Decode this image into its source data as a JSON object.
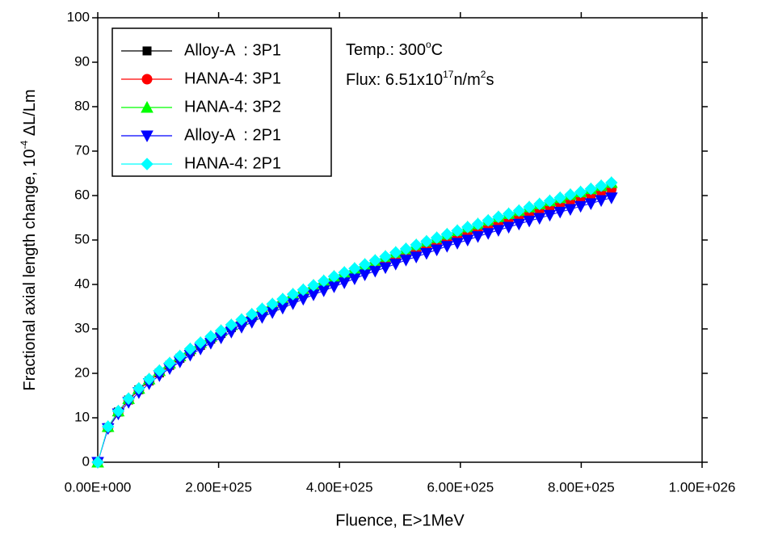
{
  "chart_data": {
    "type": "line",
    "x_label": "Fluence, E>1MeV",
    "y_label": {
      "parts": [
        {
          "text": "Fractional axial length change, 10"
        },
        {
          "text": "-4",
          "sup": true
        },
        {
          "text": " ΔL/Lm"
        }
      ]
    },
    "annotations": [
      {
        "parts": [
          {
            "text": "Temp.: 300"
          },
          {
            "text": "o",
            "sup": true
          },
          {
            "text": "C"
          }
        ]
      },
      {
        "parts": [
          {
            "text": "Flux: 6.51x10"
          },
          {
            "text": "17",
            "sup": true
          },
          {
            "text": "n/m"
          },
          {
            "text": "2",
            "sup": true
          },
          {
            "text": "s"
          }
        ]
      }
    ],
    "xlim": [
      0,
      1e+26
    ],
    "xticks": [
      {
        "value": 0,
        "label": "0.00E+000"
      },
      {
        "value": 2e+25,
        "label": "2.00E+025"
      },
      {
        "value": 4e+25,
        "label": "4.00E+025"
      },
      {
        "value": 6e+25,
        "label": "6.00E+025"
      },
      {
        "value": 8e+25,
        "label": "8.00E+025"
      },
      {
        "value": 1e+26,
        "label": "1.00E+026"
      }
    ],
    "ylim": [
      0,
      100
    ],
    "yticks": [
      0,
      10,
      20,
      30,
      40,
      50,
      60,
      70,
      80,
      90,
      100
    ],
    "legend": "upper left",
    "x": [
      0,
      1.7e+24,
      3.4e+24,
      5.1e+24,
      6.8e+24,
      8.5e+24,
      1.02e+25,
      1.19e+25,
      1.36e+25,
      1.53e+25,
      1.7e+25,
      1.87e+25,
      2.04e+25,
      2.21e+25,
      2.38e+25,
      2.55e+25,
      2.72e+25,
      2.89e+25,
      3.06e+25,
      3.23e+25,
      3.4e+25,
      3.57e+25,
      3.74e+25,
      3.91e+25,
      4.08e+25,
      4.25e+25,
      4.42e+25,
      4.59e+25,
      4.76e+25,
      4.93e+25,
      5.1e+25,
      5.27e+25,
      5.44e+25,
      5.61e+25,
      5.78e+25,
      5.95e+25,
      6.12e+25,
      6.29e+25,
      6.46e+25,
      6.63e+25,
      6.8e+25,
      6.97e+25,
      7.14e+25,
      7.31e+25,
      7.48e+25,
      7.65e+25,
      7.82e+25,
      7.99e+25,
      8.16e+25,
      8.33e+25,
      8.5e+25
    ],
    "series": [
      {
        "name": "Alloy-A  : 3P1",
        "color": "#000000",
        "marker": "square",
        "values": [
          0,
          7.8,
          11.3,
          14.0,
          16.3,
          18.3,
          20.1,
          21.8,
          23.4,
          24.9,
          26.3,
          27.7,
          29.0,
          30.3,
          31.5,
          32.6,
          33.8,
          34.9,
          35.9,
          37.0,
          38.0,
          39.0,
          39.9,
          40.9,
          41.8,
          42.7,
          43.6,
          44.5,
          45.3,
          46.2,
          47.0,
          47.8,
          48.6,
          49.4,
          50.2,
          51.0,
          51.8,
          52.5,
          53.3,
          54.0,
          54.7,
          55.4,
          56.1,
          56.8,
          57.5,
          58.2,
          58.9,
          59.6,
          60.2,
          60.9,
          61.5
        ]
      },
      {
        "name": "HANA-4: 3P1",
        "color": "#ff0000",
        "marker": "circle",
        "values": [
          0,
          7.8,
          11.3,
          14.0,
          16.3,
          18.3,
          20.1,
          21.8,
          23.4,
          24.9,
          26.3,
          27.7,
          29.0,
          30.3,
          31.5,
          32.6,
          33.8,
          34.9,
          35.9,
          37.0,
          38.0,
          39.0,
          39.9,
          40.9,
          41.8,
          42.7,
          43.6,
          44.5,
          45.3,
          46.2,
          47.0,
          47.8,
          48.6,
          49.4,
          50.2,
          51.0,
          51.8,
          52.5,
          53.3,
          54.0,
          54.7,
          55.4,
          56.1,
          56.8,
          57.5,
          58.2,
          58.9,
          59.6,
          60.2,
          60.9,
          61.5
        ]
      },
      {
        "name": "HANA-4: 3P2",
        "color": "#00ff00",
        "marker": "triangle-up",
        "values": [
          0,
          8.0,
          11.5,
          14.3,
          16.6,
          18.7,
          20.6,
          22.3,
          23.9,
          25.5,
          26.9,
          28.3,
          29.6,
          30.9,
          32.1,
          33.3,
          34.5,
          35.6,
          36.7,
          37.8,
          38.8,
          39.8,
          40.8,
          41.8,
          42.7,
          43.6,
          44.5,
          45.4,
          46.3,
          47.2,
          48.0,
          48.9,
          49.7,
          50.5,
          51.3,
          52.1,
          52.9,
          53.6,
          54.4,
          55.2,
          55.9,
          56.6,
          57.4,
          58.1,
          58.8,
          59.5,
          60.2,
          60.8,
          61.5,
          62.2,
          62.9
        ]
      },
      {
        "name": "Alloy-A  : 2P1",
        "color": "#0000ff",
        "marker": "triangle-down",
        "values": [
          0,
          7.6,
          10.9,
          13.5,
          15.7,
          17.7,
          19.5,
          21.1,
          22.6,
          24.1,
          25.5,
          26.8,
          28.0,
          29.3,
          30.4,
          31.5,
          32.6,
          33.7,
          34.7,
          35.7,
          36.7,
          37.7,
          38.6,
          39.5,
          40.4,
          41.3,
          42.2,
          43.0,
          43.8,
          44.6,
          45.5,
          46.2,
          47.0,
          47.8,
          48.6,
          49.3,
          50.0,
          50.8,
          51.5,
          52.2,
          52.9,
          53.6,
          54.3,
          54.9,
          55.6,
          56.3,
          56.9,
          57.6,
          58.2,
          58.9,
          59.5
        ]
      },
      {
        "name": "HANA-4: 2P1",
        "color": "#00ffff",
        "marker": "diamond",
        "values": [
          0,
          8.0,
          11.5,
          14.3,
          16.6,
          18.7,
          20.6,
          22.3,
          23.9,
          25.5,
          26.9,
          28.3,
          29.6,
          30.9,
          32.1,
          33.3,
          34.5,
          35.6,
          36.7,
          37.8,
          38.8,
          39.8,
          40.8,
          41.8,
          42.7,
          43.6,
          44.5,
          45.4,
          46.3,
          47.2,
          48.0,
          48.9,
          49.7,
          50.5,
          51.3,
          52.1,
          52.9,
          53.6,
          54.4,
          55.2,
          55.9,
          56.6,
          57.4,
          58.1,
          58.8,
          59.5,
          60.2,
          60.8,
          61.5,
          62.2,
          62.9
        ]
      }
    ]
  }
}
